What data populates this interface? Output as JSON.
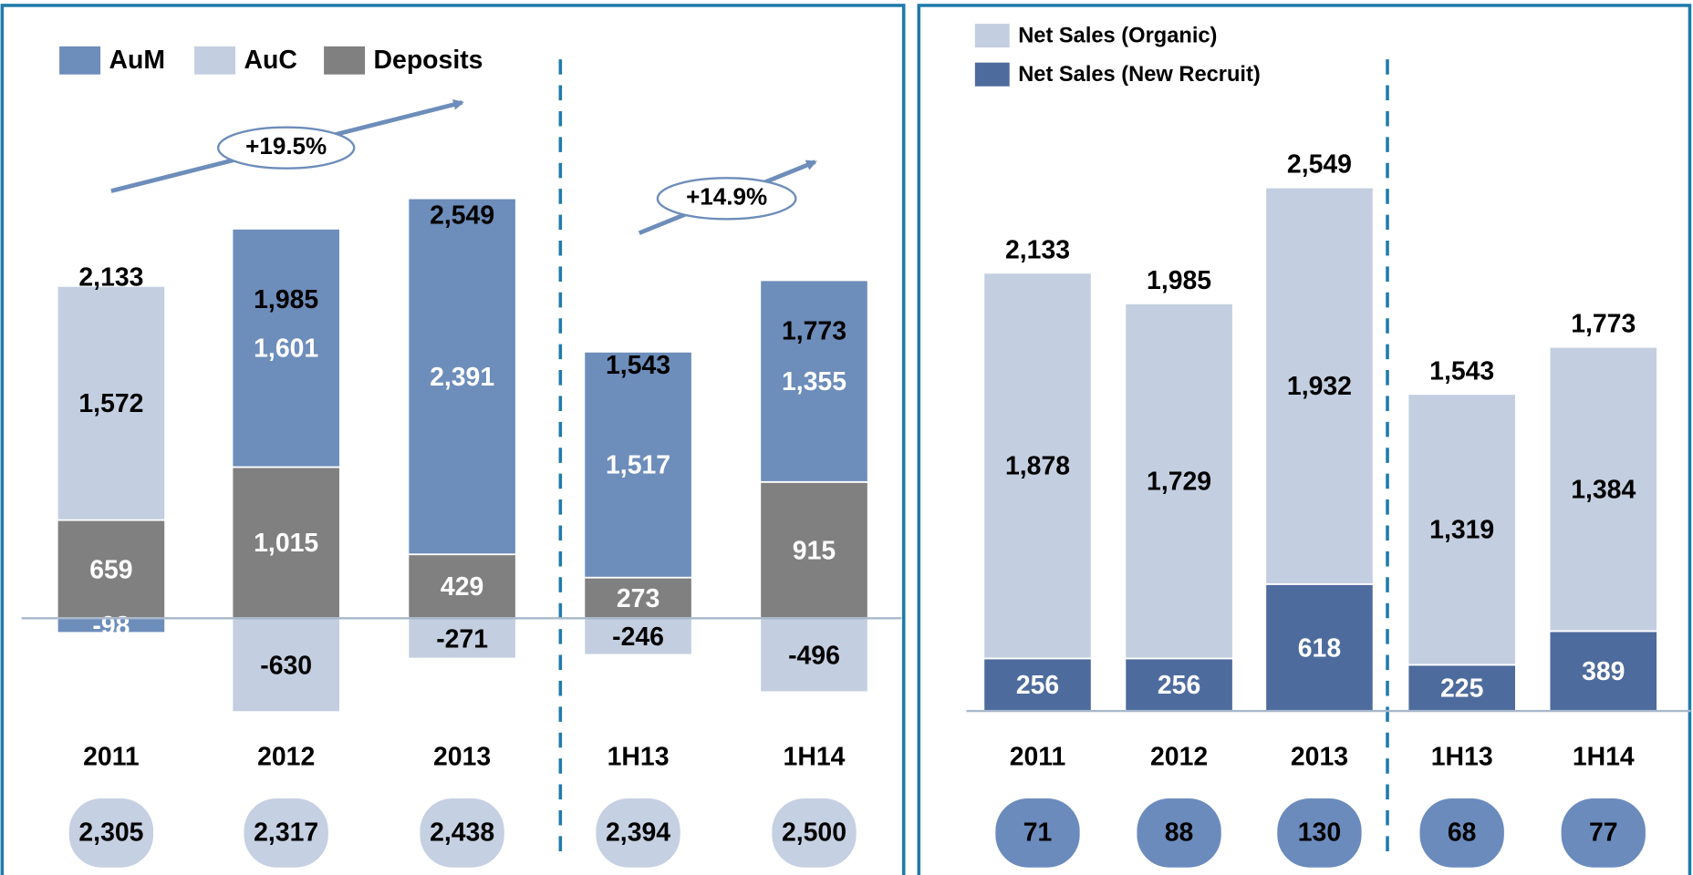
{
  "chart_data": [
    {
      "type": "bar",
      "stacked": true,
      "categories": [
        "2011",
        "2012",
        "2013",
        "1H13",
        "1H14"
      ],
      "series": [
        {
          "name": "AuM",
          "color": "#6d8dba",
          "values": [
            -98,
            1601,
            2391,
            1517,
            1355
          ],
          "value_labels": [
            "-98",
            "1,601",
            "2,391",
            "1,517",
            "1,355"
          ]
        },
        {
          "name": "AuC",
          "color": "#c3cfe0",
          "values": [
            1572,
            -630,
            -271,
            -246,
            -496
          ],
          "value_labels": [
            "1,572",
            "-630",
            "-271",
            "-246",
            "-496"
          ]
        },
        {
          "name": "Deposits",
          "color": "#808080",
          "values": [
            659,
            1015,
            429,
            273,
            915
          ],
          "value_labels": [
            "659",
            "1,015",
            "429",
            "273",
            "915"
          ]
        }
      ],
      "totals": [
        2133,
        1985,
        2549,
        1543,
        1773
      ],
      "total_labels": [
        "2,133",
        "1,985",
        "2,549",
        "1,543",
        "1,773"
      ],
      "footer_values": [
        2305,
        2317,
        2438,
        2394,
        2500
      ],
      "footer_labels": [
        "2,305",
        "2,317",
        "2,438",
        "2,394",
        "2,500"
      ],
      "annotations": [
        "+19.5%",
        "+14.9%"
      ]
    },
    {
      "type": "bar",
      "stacked": true,
      "categories": [
        "2011",
        "2012",
        "2013",
        "1H13",
        "1H14"
      ],
      "series": [
        {
          "name": "Net Sales (Organic)",
          "color": "#c3cfe0",
          "values": [
            1878,
            1729,
            1932,
            1319,
            1384
          ],
          "value_labels": [
            "1,878",
            "1,729",
            "1,932",
            "1,319",
            "1,384"
          ]
        },
        {
          "name": "Net Sales (New Recruit)",
          "color": "#4d6b9c",
          "values": [
            256,
            256,
            618,
            225,
            389
          ],
          "value_labels": [
            "256",
            "256",
            "618",
            "225",
            "389"
          ]
        }
      ],
      "totals": [
        2133,
        1985,
        2549,
        1543,
        1773
      ],
      "total_labels": [
        "2,133",
        "1,985",
        "2,549",
        "1,543",
        "1,773"
      ],
      "footer_values": [
        71,
        88,
        130,
        68,
        77
      ],
      "footer_labels": [
        "71",
        "88",
        "130",
        "68",
        "77"
      ]
    }
  ]
}
